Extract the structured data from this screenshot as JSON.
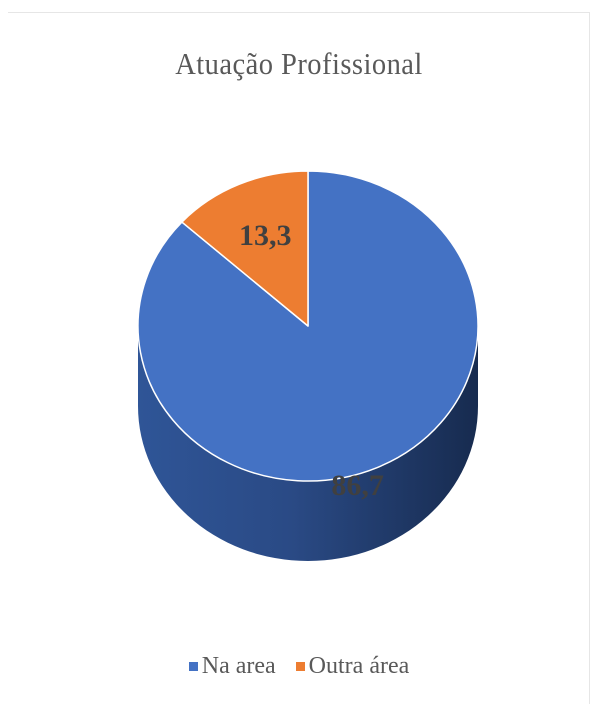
{
  "chart_data": {
    "type": "pie",
    "title": "Atuação Profissional",
    "categories": [
      "Na area",
      "Outra área"
    ],
    "values": [
      86.7,
      13.3
    ],
    "data_labels": [
      "86,7",
      "13,3"
    ],
    "colors": [
      "#4472c4",
      "#ed7d31"
    ],
    "legend": "bottom",
    "style": "3d"
  }
}
